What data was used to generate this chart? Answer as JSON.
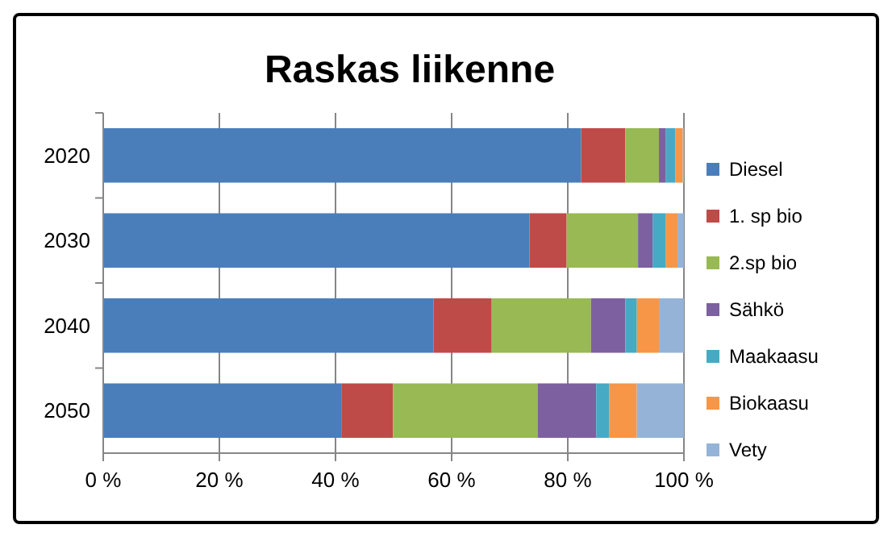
{
  "chart_data": {
    "type": "bar",
    "orientation": "horizontal",
    "stacked": true,
    "title": "Raskas liikenne",
    "categories": [
      "2020",
      "2030",
      "2040",
      "2050"
    ],
    "series": [
      {
        "name": "Diesel",
        "color": "#4a7ebb",
        "values": [
          82.3,
          73.4,
          56.9,
          41.0
        ]
      },
      {
        "name": "1. sp bio",
        "color": "#be4b48",
        "values": [
          7.6,
          6.4,
          10.0,
          8.9
        ]
      },
      {
        "name": "2.sp bio",
        "color": "#98b954",
        "values": [
          5.8,
          12.3,
          17.1,
          24.9
        ]
      },
      {
        "name": "Sähkö",
        "color": "#7d60a0",
        "values": [
          1.2,
          2.5,
          5.9,
          10.1
        ]
      },
      {
        "name": "Maakaasu",
        "color": "#46aac5",
        "values": [
          1.6,
          2.3,
          2.0,
          2.2
        ]
      },
      {
        "name": "Biokaasu",
        "color": "#f79646",
        "values": [
          1.3,
          2.0,
          3.8,
          4.8
        ]
      },
      {
        "name": "Vety",
        "color": "#95b3d7",
        "values": [
          0.2,
          1.1,
          4.3,
          8.1
        ]
      }
    ],
    "xlim": [
      0,
      100
    ],
    "xticks": [
      {
        "value": 0,
        "label": "0 %"
      },
      {
        "value": 20,
        "label": "20 %"
      },
      {
        "value": 40,
        "label": "40 %"
      },
      {
        "value": 60,
        "label": "60 %"
      },
      {
        "value": 80,
        "label": "80 %"
      },
      {
        "value": 100,
        "label": "100 %"
      }
    ],
    "grid": "x",
    "legend": "right"
  }
}
